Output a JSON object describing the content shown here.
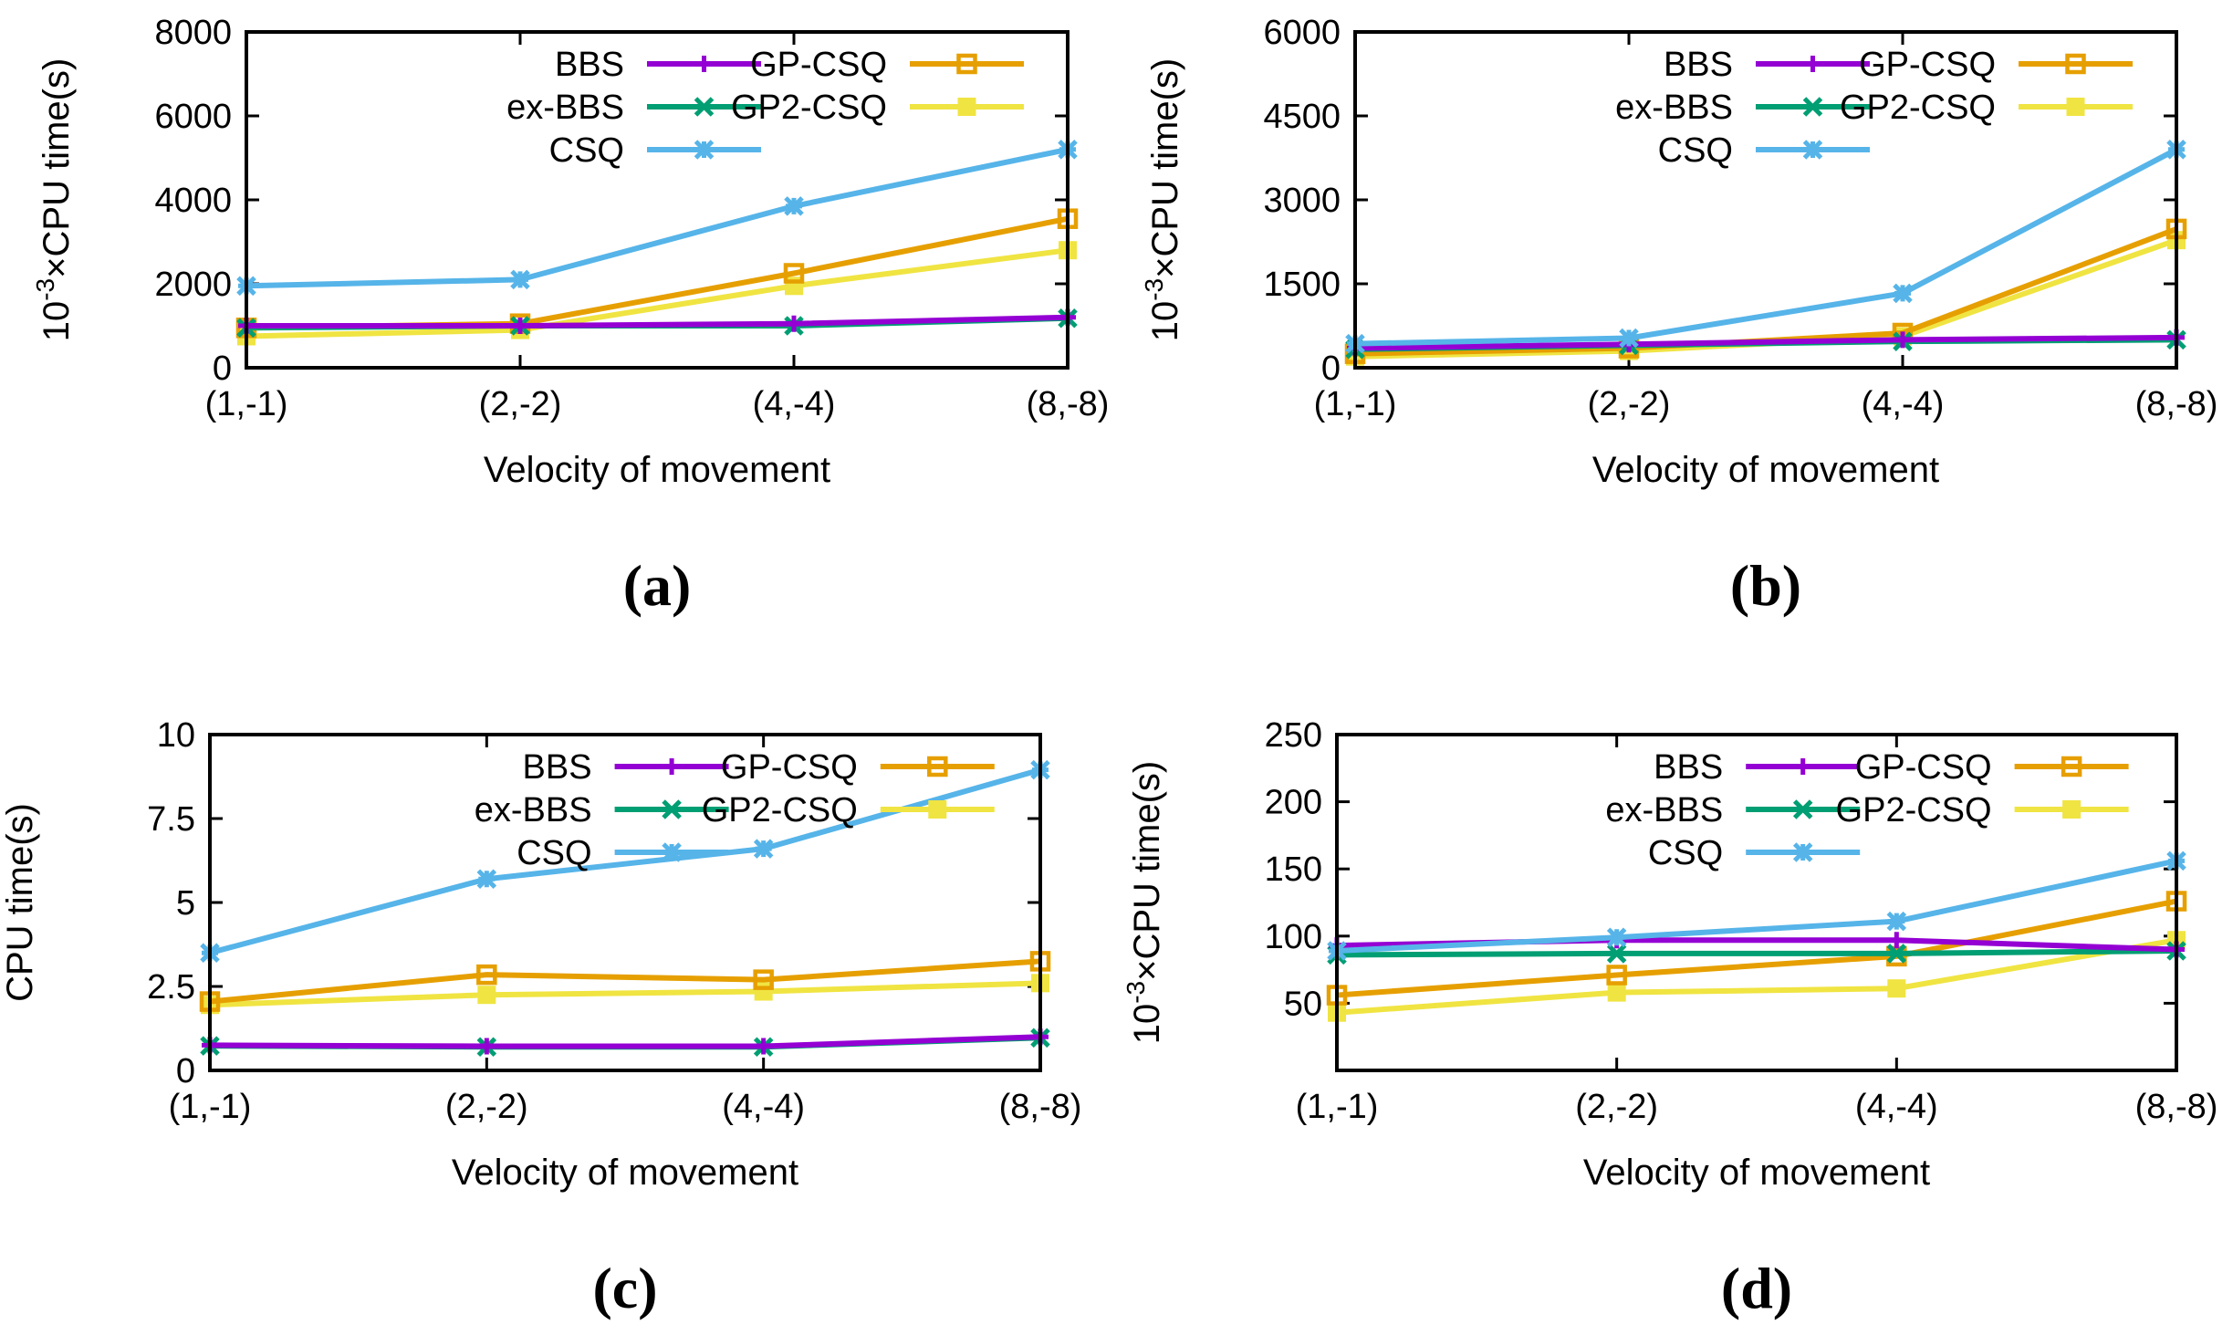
{
  "colors": {
    "BBS": "#9400d3",
    "ex-BBS": "#009e73",
    "CSQ": "#56b4e9",
    "GP-CSQ": "#e69f00",
    "GP2-CSQ": "#f0e442"
  },
  "chart_data": [
    {
      "panel": "(a)",
      "type": "line",
      "categories": [
        "(1,-1)",
        "(2,-2)",
        "(4,-4)",
        "(8,-8)"
      ],
      "xlabel": "Velocity of movement",
      "ylabel_prefix": "10",
      "ylabel_sup": "-3",
      "ylabel_rest": "×CPU time(s)",
      "ylim": [
        0,
        8000
      ],
      "yticks": [
        0,
        2000,
        4000,
        6000,
        8000
      ],
      "yticklabels": [
        "0",
        "2000",
        "4000",
        "6000",
        "8000"
      ],
      "series": [
        {
          "name": "BBS",
          "marker": "plus",
          "values": [
            1000,
            1000,
            1050,
            1200
          ]
        },
        {
          "name": "ex-BBS",
          "marker": "x",
          "values": [
            950,
            1000,
            1000,
            1180
          ]
        },
        {
          "name": "CSQ",
          "marker": "star",
          "values": [
            1950,
            2100,
            3850,
            5200
          ]
        },
        {
          "name": "GP-CSQ",
          "marker": "square",
          "values": [
            950,
            1050,
            2250,
            3550
          ]
        },
        {
          "name": "GP2-CSQ",
          "marker": "filled-square",
          "values": [
            750,
            900,
            1950,
            2800
          ]
        }
      ]
    },
    {
      "panel": "(b)",
      "type": "line",
      "categories": [
        "(1,-1)",
        "(2,-2)",
        "(4,-4)",
        "(8,-8)"
      ],
      "xlabel": "Velocity of movement",
      "ylabel_prefix": "10",
      "ylabel_sup": "-3",
      "ylabel_rest": "×CPU time(s)",
      "ylim": [
        0,
        6000
      ],
      "yticks": [
        0,
        1500,
        3000,
        4500,
        6000
      ],
      "yticklabels": [
        "0",
        "1500",
        "3000",
        "4500",
        "6000"
      ],
      "series": [
        {
          "name": "BBS",
          "marker": "plus",
          "values": [
            350,
            420,
            500,
            540
          ]
        },
        {
          "name": "ex-BBS",
          "marker": "x",
          "values": [
            330,
            400,
            470,
            500
          ]
        },
        {
          "name": "CSQ",
          "marker": "star",
          "values": [
            430,
            530,
            1330,
            3900
          ]
        },
        {
          "name": "GP-CSQ",
          "marker": "square",
          "values": [
            250,
            350,
            620,
            2480
          ]
        },
        {
          "name": "GP2-CSQ",
          "marker": "filled-square",
          "values": [
            200,
            300,
            560,
            2280
          ]
        }
      ]
    },
    {
      "panel": "(c)",
      "type": "line",
      "categories": [
        "(1,-1)",
        "(2,-2)",
        "(4,-4)",
        "(8,-8)"
      ],
      "xlabel": "Velocity of movement",
      "ylabel_prefix": "",
      "ylabel_sup": "",
      "ylabel_rest": "CPU time(s)",
      "ylim": [
        0,
        10
      ],
      "yticks": [
        0,
        2.5,
        5,
        7.5,
        10
      ],
      "yticklabels": [
        "0",
        "2.5",
        "5",
        "7.5",
        "10"
      ],
      "series": [
        {
          "name": "BBS",
          "marker": "plus",
          "values": [
            0.75,
            0.72,
            0.72,
            1.0
          ]
        },
        {
          "name": "ex-BBS",
          "marker": "x",
          "values": [
            0.73,
            0.7,
            0.7,
            0.97
          ]
        },
        {
          "name": "CSQ",
          "marker": "star",
          "values": [
            3.5,
            5.7,
            6.6,
            8.95
          ]
        },
        {
          "name": "GP-CSQ",
          "marker": "square",
          "values": [
            2.05,
            2.85,
            2.7,
            3.25
          ]
        },
        {
          "name": "GP2-CSQ",
          "marker": "filled-square",
          "values": [
            1.95,
            2.25,
            2.35,
            2.6
          ]
        }
      ]
    },
    {
      "panel": "(d)",
      "type": "line",
      "categories": [
        "(1,-1)",
        "(2,-2)",
        "(4,-4)",
        "(8,-8)"
      ],
      "xlabel": "Velocity of movement",
      "ylabel_prefix": "10",
      "ylabel_sup": "-3",
      "ylabel_rest": "×CPU time(s)",
      "ylim": [
        0,
        250
      ],
      "yticks": [
        50,
        100,
        150,
        200,
        250
      ],
      "yticklabels": [
        "50",
        "100",
        "150",
        "200",
        "250"
      ],
      "series": [
        {
          "name": "BBS",
          "marker": "plus",
          "values": [
            93,
            97,
            97,
            90
          ]
        },
        {
          "name": "ex-BBS",
          "marker": "x",
          "values": [
            86,
            87,
            87,
            89
          ]
        },
        {
          "name": "CSQ",
          "marker": "star",
          "values": [
            89,
            99,
            111,
            156
          ]
        },
        {
          "name": "GP-CSQ",
          "marker": "square",
          "values": [
            56,
            71,
            85,
            126
          ]
        },
        {
          "name": "GP2-CSQ",
          "marker": "filled-square",
          "values": [
            43,
            58,
            61,
            97
          ]
        }
      ]
    }
  ]
}
